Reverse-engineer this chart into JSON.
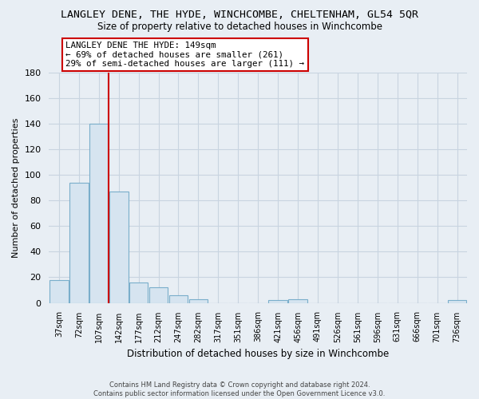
{
  "title": "LANGLEY DENE, THE HYDE, WINCHCOMBE, CHELTENHAM, GL54 5QR",
  "subtitle": "Size of property relative to detached houses in Winchcombe",
  "xlabel": "Distribution of detached houses by size in Winchcombe",
  "ylabel": "Number of detached properties",
  "bar_labels": [
    "37sqm",
    "72sqm",
    "107sqm",
    "142sqm",
    "177sqm",
    "212sqm",
    "247sqm",
    "282sqm",
    "317sqm",
    "351sqm",
    "386sqm",
    "421sqm",
    "456sqm",
    "491sqm",
    "526sqm",
    "561sqm",
    "596sqm",
    "631sqm",
    "666sqm",
    "701sqm",
    "736sqm"
  ],
  "bar_values": [
    18,
    94,
    140,
    87,
    16,
    12,
    6,
    3,
    0,
    0,
    0,
    2,
    3,
    0,
    0,
    0,
    0,
    0,
    0,
    0,
    2
  ],
  "bar_color": "#d6e4f0",
  "bar_edge_color": "#7aaecb",
  "vline_x_index": 3,
  "vline_color": "#cc0000",
  "annotation_lines": [
    "LANGLEY DENE THE HYDE: 149sqm",
    "← 69% of detached houses are smaller (261)",
    "29% of semi-detached houses are larger (111) →"
  ],
  "ylim": [
    0,
    180
  ],
  "yticks": [
    0,
    20,
    40,
    60,
    80,
    100,
    120,
    140,
    160,
    180
  ],
  "footer_line1": "Contains HM Land Registry data © Crown copyright and database right 2024.",
  "footer_line2": "Contains public sector information licensed under the Open Government Licence v3.0.",
  "bg_color": "#e8eef4",
  "grid_color": "#c8d4e0",
  "title_fontsize": 9.5,
  "subtitle_fontsize": 8.5,
  "ylabel_text": "Number of detached properties"
}
